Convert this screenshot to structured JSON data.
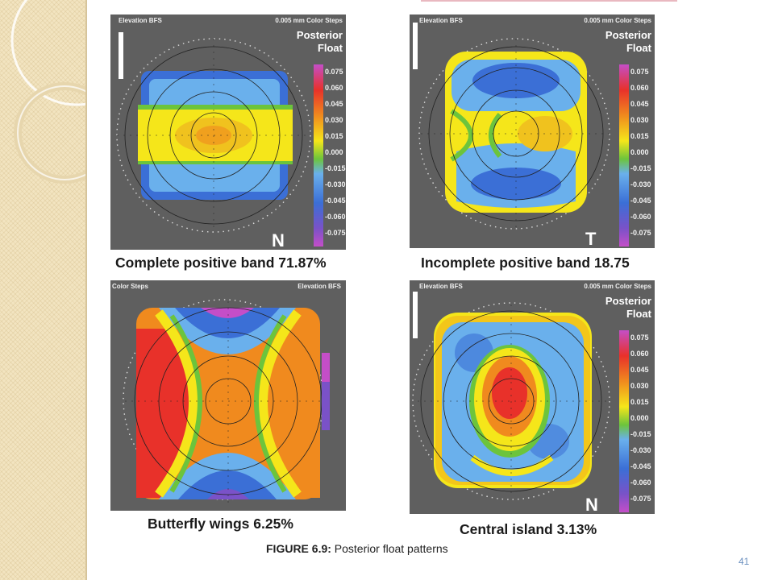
{
  "figure": {
    "label": "FIGURE 6.9:",
    "title": "Posterior float patterns"
  },
  "page_number": "41",
  "scale_ticks": [
    "0.075",
    "0.060",
    "0.045",
    "0.030",
    "0.015",
    "0.000",
    "-0.015",
    "-0.030",
    "-0.045",
    "-0.060",
    "-0.075"
  ],
  "panels": [
    {
      "caption": "Complete positive band 71.87%",
      "header_left": "Elevation BFS",
      "header_right": "0.005 mm Color Steps",
      "corner_line1": "Posterior",
      "corner_line2": "Float",
      "letter": "N"
    },
    {
      "caption": "Incomplete positive band 18.75",
      "header_left": "Elevation BFS",
      "header_right": "0.005 mm Color Steps",
      "corner_line1": "Posterior",
      "corner_line2": "Float",
      "letter": "T"
    },
    {
      "caption": "Butterfly wings  6.25%",
      "header_left": "Color Steps",
      "header_right": "Elevation BFS",
      "corner_line1": "",
      "corner_line2": "",
      "letter": ""
    },
    {
      "caption": "Central island 3.13%",
      "header_left": "Elevation BFS",
      "header_right": "0.005 mm Color Steps",
      "corner_line1": "Posterior",
      "corner_line2": "Float",
      "letter": "N"
    }
  ],
  "colors": {
    "magenta": "#c44ec8",
    "red": "#e8312a",
    "orange": "#f08a1e",
    "yellow": "#f5e61a",
    "green": "#6cc43c",
    "light_blue": "#6ab0ec",
    "blue": "#3b6fd6",
    "violet": "#7a52c8",
    "panel_bg": "#5f5f5f",
    "sidebar": "#f2e4c0"
  }
}
